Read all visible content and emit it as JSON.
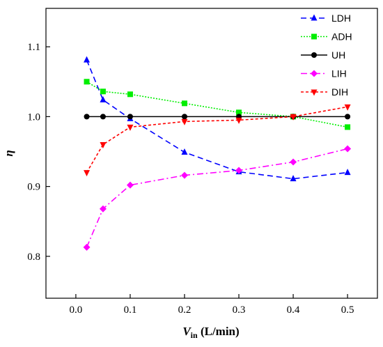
{
  "chart_data": {
    "type": "line",
    "xlabel": "V",
    "xlabel_sub": "in",
    "xlabel_unit": " (L/min)",
    "ylabel": "η",
    "xlim": [
      -0.055,
      0.555
    ],
    "ylim": [
      0.74,
      1.155
    ],
    "x_ticks": [
      "0.0",
      "0.1",
      "0.2",
      "0.3",
      "0.4",
      "0.5"
    ],
    "y_ticks": [
      "0.8",
      "0.9",
      "1.0",
      "1.1"
    ],
    "grid": false,
    "legend_position": "top-right",
    "x": [
      0.02,
      0.05,
      0.1,
      0.2,
      0.3,
      0.4,
      0.5
    ],
    "series": [
      {
        "name": "LDH",
        "color": "#0000ff",
        "dash": "dashed",
        "marker": "triangle-up",
        "values": [
          1.081,
          1.024,
          0.997,
          0.949,
          0.921,
          0.911,
          0.92
        ]
      },
      {
        "name": "ADH",
        "color": "#00ee00",
        "dash": "dotted",
        "marker": "square",
        "values": [
          1.05,
          1.036,
          1.032,
          1.019,
          1.006,
          1.0,
          0.985
        ]
      },
      {
        "name": "UH",
        "color": "#000000",
        "dash": "solid",
        "marker": "circle",
        "values": [
          1.0,
          1.0,
          1.0,
          1.0,
          1.0,
          1.0,
          1.0
        ]
      },
      {
        "name": "LIH",
        "color": "#ff00ff",
        "dash": "dashdot",
        "marker": "diamond",
        "values": [
          0.813,
          0.868,
          0.902,
          0.916,
          0.923,
          0.935,
          0.954
        ]
      },
      {
        "name": "DIH",
        "color": "#ff0000",
        "dash": "shortdash",
        "marker": "triangle-down",
        "values": [
          0.92,
          0.96,
          0.985,
          0.993,
          0.995,
          1.0,
          1.014
        ]
      }
    ]
  }
}
